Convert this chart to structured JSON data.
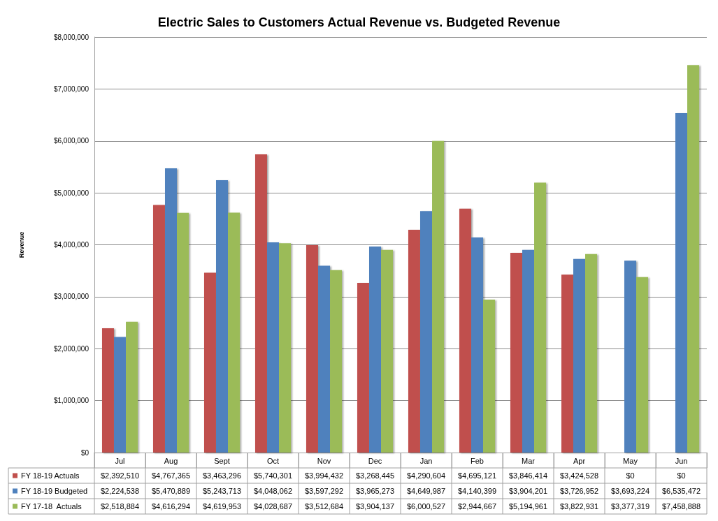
{
  "chart_data": {
    "type": "bar",
    "title": "Electric Sales to Customers Actual Revenue vs. Budgeted Revenue",
    "ylabel": "Revenue",
    "categories": [
      "Jul",
      "Aug",
      "Sept",
      "Oct",
      "Nov",
      "Dec",
      "Jan",
      "Feb",
      "Mar",
      "Apr",
      "May",
      "Jun"
    ],
    "series": [
      {
        "name": "FY 18-19 Actuals",
        "color": "#c0504d",
        "values": [
          2392510,
          4767365,
          3463296,
          5740301,
          3994432,
          3268445,
          4290604,
          4695121,
          3846414,
          3424528,
          0,
          0
        ],
        "value_labels": [
          "$2,392,510",
          "$4,767,365",
          "$3,463,296",
          "$5,740,301",
          "$3,994,432",
          "$3,268,445",
          "$4,290,604",
          "$4,695,121",
          "$3,846,414",
          "$3,424,528",
          "$0",
          "$0"
        ]
      },
      {
        "name": "FY 18-19 Budgeted",
        "color": "#4f81bd",
        "values": [
          2224538,
          5470889,
          5243713,
          4048062,
          3597292,
          3965273,
          4649987,
          4140399,
          3904201,
          3726952,
          3693224,
          6535472
        ],
        "value_labels": [
          "$2,224,538",
          "$5,470,889",
          "$5,243,713",
          "$4,048,062",
          "$3,597,292",
          "$3,965,273",
          "$4,649,987",
          "$4,140,399",
          "$3,904,201",
          "$3,726,952",
          "$3,693,224",
          "$6,535,472"
        ]
      },
      {
        "name": "FY 17-18  Actuals",
        "color": "#9bbb59",
        "values": [
          2518884,
          4616294,
          4619953,
          4028687,
          3512684,
          3904137,
          6000527,
          2944667,
          5194961,
          3822931,
          3377319,
          7458888
        ],
        "value_labels": [
          "$2,518,884",
          "$4,616,294",
          "$4,619,953",
          "$4,028,687",
          "$3,512,684",
          "$3,904,137",
          "$6,000,527",
          "$2,944,667",
          "$5,194,961",
          "$3,822,931",
          "$3,377,319",
          "$7,458,888"
        ]
      }
    ],
    "ylim": [
      0,
      8000000
    ],
    "yticks": [
      {
        "value": 0,
        "label": "$0"
      },
      {
        "value": 1000000,
        "label": "$1,000,000"
      },
      {
        "value": 2000000,
        "label": "$2,000,000"
      },
      {
        "value": 3000000,
        "label": "$3,000,000"
      },
      {
        "value": 4000000,
        "label": "$4,000,000"
      },
      {
        "value": 5000000,
        "label": "$5,000,000"
      },
      {
        "value": 6000000,
        "label": "$6,000,000"
      },
      {
        "value": 7000000,
        "label": "$7,000,000"
      },
      {
        "value": 8000000,
        "label": "$8,000,000"
      }
    ],
    "grid": "y",
    "legend": "bottom left"
  }
}
